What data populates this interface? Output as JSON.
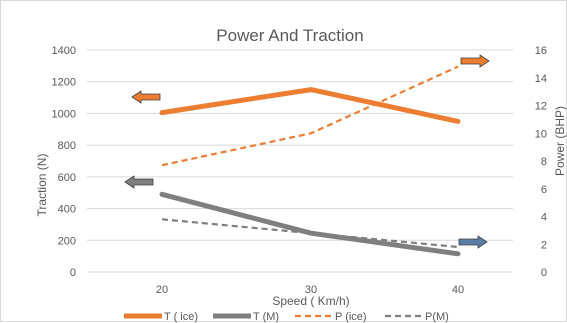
{
  "chart_data": {
    "type": "line",
    "title": "Power And Traction",
    "xlabel": "Speed ( Km/h)",
    "ylabel": "Traction (N)",
    "y2label": "Power (BHP)",
    "categories": [
      "20",
      "30",
      "40"
    ],
    "ylim": [
      0,
      1400
    ],
    "y2lim": [
      0,
      16
    ],
    "yticks": [
      "0",
      "200",
      "400",
      "600",
      "800",
      "1000",
      "1200",
      "1400"
    ],
    "y2ticks": [
      "0",
      "2",
      "4",
      "6",
      "8",
      "10",
      "12",
      "14",
      "16"
    ],
    "grid": true,
    "legend_position": "bottom",
    "series": [
      {
        "name": "T ( ice)",
        "axis": "left",
        "values": [
          1005,
          1150,
          950
        ],
        "color": "#ED7D31",
        "style": "solid",
        "weight": "thick"
      },
      {
        "name": "T (M)",
        "axis": "left",
        "values": [
          490,
          245,
          115
        ],
        "color": "#7F7F7F",
        "style": "solid",
        "weight": "thick"
      },
      {
        "name": "P (ice)",
        "axis": "right",
        "values": [
          7.7,
          10,
          14.8
        ],
        "color": "#ED7D31",
        "style": "dashed",
        "weight": "thin"
      },
      {
        "name": "P(M)",
        "axis": "right",
        "values": [
          3.8,
          2.8,
          1.8
        ],
        "color": "#7F7F7F",
        "style": "dashed",
        "weight": "thin"
      }
    ],
    "annotations": [
      {
        "type": "arrow",
        "direction": "left",
        "color": "#ED7D31",
        "points_to": "T ( ice)"
      },
      {
        "type": "arrow",
        "direction": "right",
        "color": "#ED7D31",
        "points_to": "P (ice)"
      },
      {
        "type": "arrow",
        "direction": "left",
        "color": "#7F7F7F",
        "points_to": "T (M)"
      },
      {
        "type": "arrow",
        "direction": "right",
        "color": "#5B7EA6",
        "points_to": "P(M)"
      }
    ]
  }
}
